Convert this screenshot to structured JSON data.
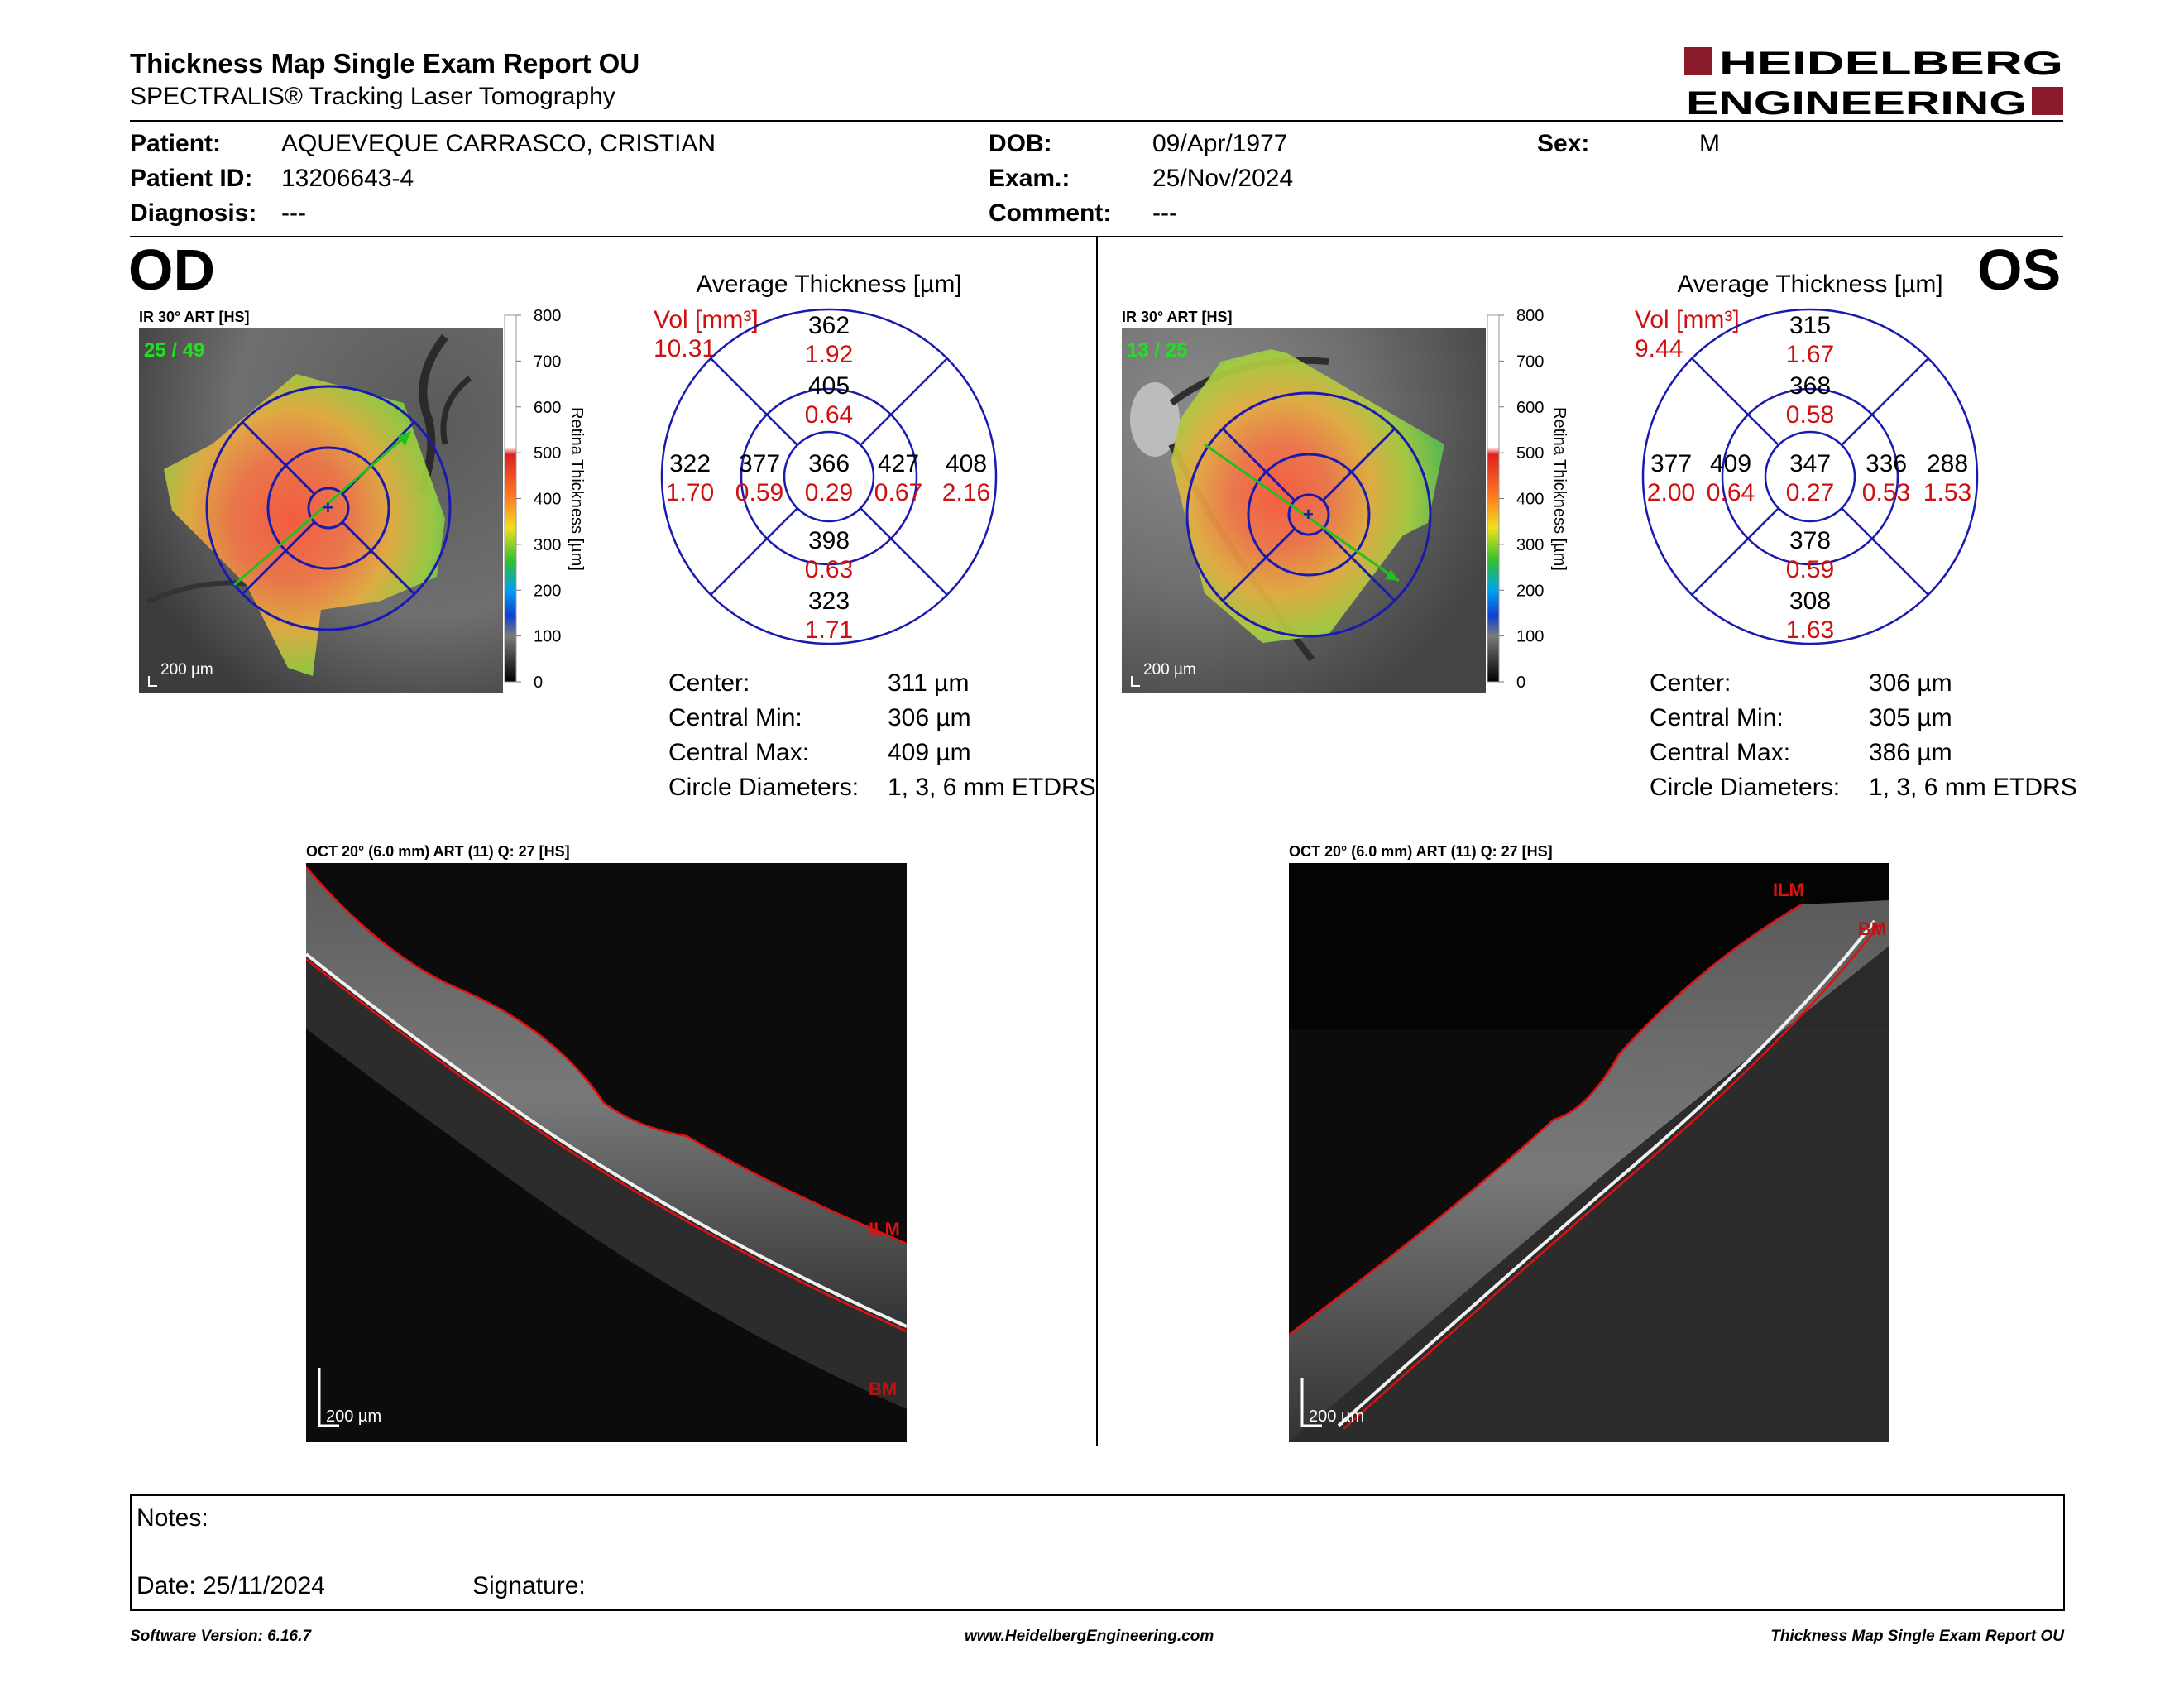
{
  "header": {
    "title": "Thickness Map Single Exam Report OU",
    "subtitle": "SPECTRALIS® Tracking Laser Tomography",
    "logo_line1": "HEIDELBERG",
    "logo_line2": "ENGINEERING",
    "logo_color": "#8b1a2b"
  },
  "patient": {
    "patient_label": "Patient:",
    "patient_value": "AQUEVEQUE CARRASCO, CRISTIAN",
    "id_label": "Patient ID:",
    "id_value": "13206643-4",
    "diagnosis_label": "Diagnosis:",
    "diagnosis_value": "---",
    "dob_label": "DOB:",
    "dob_value": "09/Apr/1977",
    "exam_label": "Exam.:",
    "exam_value": "25/Nov/2024",
    "comment_label": "Comment:",
    "comment_value": "---",
    "sex_label": "Sex:",
    "sex_value": "M"
  },
  "od": {
    "eye": "OD",
    "fundus_header": "IR 30° ART [HS]",
    "frames": "25 / 49",
    "scale": "200 µm",
    "avg_title": "Average Thickness [µm]",
    "vol_label": "Vol [mm³]",
    "total_vol": "10.31",
    "sectors": {
      "center": {
        "t": "366",
        "v": "0.29"
      },
      "inner_sup": {
        "t": "405",
        "v": "0.64"
      },
      "inner_inf": {
        "t": "398",
        "v": "0.63"
      },
      "inner_left": {
        "t": "377",
        "v": "0.59"
      },
      "inner_right": {
        "t": "427",
        "v": "0.67"
      },
      "outer_sup": {
        "t": "362",
        "v": "1.92"
      },
      "outer_inf": {
        "t": "323",
        "v": "1.71"
      },
      "outer_left": {
        "t": "322",
        "v": "1.70"
      },
      "outer_right": {
        "t": "408",
        "v": "2.16"
      }
    },
    "stats": [
      {
        "label": "Center:",
        "value": "311 µm"
      },
      {
        "label": "Central Min:",
        "value": "306 µm"
      },
      {
        "label": "Central Max:",
        "value": "409 µm"
      },
      {
        "label": "Circle Diameters:",
        "value": "1, 3, 6 mm ETDRS"
      }
    ],
    "oct_header": "OCT 20° (6.0 mm) ART (11) Q: 27 [HS]",
    "ilm": "ILM",
    "bm": "BM",
    "oct_scale": "200 µm"
  },
  "os": {
    "eye": "OS",
    "fundus_header": "IR 30° ART [HS]",
    "frames": "13 / 25",
    "scale": "200 µm",
    "avg_title": "Average Thickness [µm]",
    "vol_label": "Vol [mm³]",
    "total_vol": "9.44",
    "sectors": {
      "center": {
        "t": "347",
        "v": "0.27"
      },
      "inner_sup": {
        "t": "368",
        "v": "0.58"
      },
      "inner_inf": {
        "t": "378",
        "v": "0.59"
      },
      "inner_left": {
        "t": "409",
        "v": "0.64"
      },
      "inner_right": {
        "t": "336",
        "v": "0.53"
      },
      "outer_sup": {
        "t": "315",
        "v": "1.67"
      },
      "outer_inf": {
        "t": "308",
        "v": "1.63"
      },
      "outer_left": {
        "t": "377",
        "v": "2.00"
      },
      "outer_right": {
        "t": "288",
        "v": "1.53"
      }
    },
    "stats": [
      {
        "label": "Center:",
        "value": "306 µm"
      },
      {
        "label": "Central Min:",
        "value": "305 µm"
      },
      {
        "label": "Central Max:",
        "value": "386 µm"
      },
      {
        "label": "Circle Diameters:",
        "value": "1, 3, 6 mm ETDRS"
      }
    ],
    "oct_header": "OCT 20° (6.0 mm) ART (11) Q: 27 [HS]",
    "ilm": "ILM",
    "bm": "BM",
    "oct_scale": "200 µm"
  },
  "colorbar": {
    "ticks": [
      "800",
      "700",
      "600",
      "500",
      "400",
      "300",
      "200",
      "100",
      "0"
    ],
    "label": "Retina  Thickness [µm]"
  },
  "notes": {
    "notes_label": "Notes:",
    "date_label": "Date: 25/11/2024",
    "signature_label": "Signature:"
  },
  "footer": {
    "software": "Software Version: 6.16.7",
    "website": "www.HeidelbergEngineering.com",
    "report": "Thickness Map Single Exam Report OU"
  }
}
